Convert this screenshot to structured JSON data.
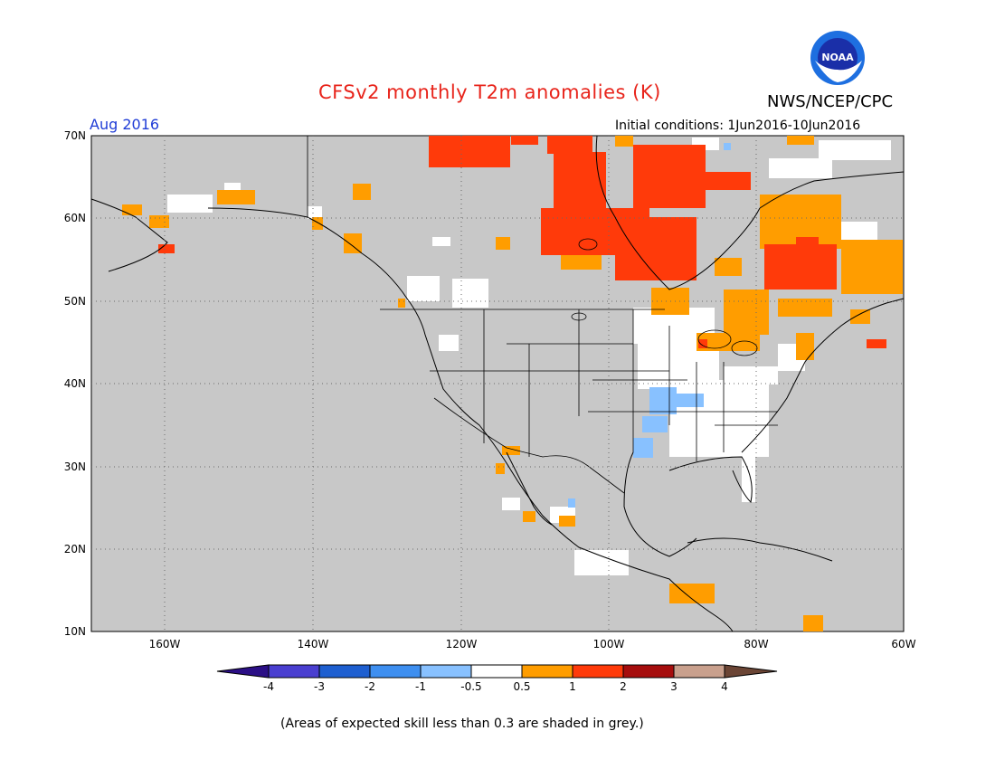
{
  "header": {
    "title": "CFSv2 monthly T2m anomalies (K)",
    "agency": "NWS/NCEP/CPC",
    "logo_text": "NOAA",
    "target_month": "Aug 2016",
    "initial_conditions": "Initial conditions: 1Jun2016-10Jun2016"
  },
  "map": {
    "lon_ticks": [
      "160W",
      "140W",
      "120W",
      "100W",
      "80W",
      "60W"
    ],
    "lat_ticks": [
      "70N",
      "60N",
      "50N",
      "40N",
      "30N",
      "20N",
      "10N"
    ],
    "land_color": "#c8c8c8",
    "border_color": "#000000"
  },
  "legend": {
    "labels": [
      "-4",
      "-3",
      "-2",
      "-1",
      "-0.5",
      "0.5",
      "1",
      "2",
      "3",
      "4"
    ],
    "colors": [
      "#2b0f86",
      "#4a3fd0",
      "#1e5fd0",
      "#3e8ff0",
      "#88c1ff",
      "#ffffff",
      "#ff9d00",
      "#ff3a0a",
      "#a60d0d",
      "#c9a08d",
      "#6b4535"
    ]
  },
  "footnote": "(Areas of expected skill less than 0.3 are shaded in grey.)"
}
